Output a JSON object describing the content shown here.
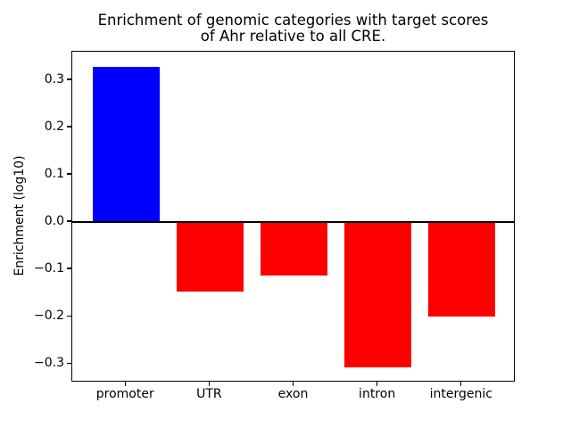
{
  "figure": {
    "title": "Enrichment of genomic categories with target scores\nof Ahr relative to all CRE.",
    "ylabel": "Enrichment (log10)"
  },
  "chart_data": {
    "type": "bar",
    "title": "Enrichment of genomic categories with target scores of Ahr relative to all CRE.",
    "xlabel": "",
    "ylabel": "Enrichment (log10)",
    "categories": [
      "promoter",
      "UTR",
      "exon",
      "intron",
      "intergenic"
    ],
    "values": [
      0.328,
      -0.146,
      -0.112,
      -0.307,
      -0.199
    ],
    "bar_colors": [
      "#0000ff",
      "#ff0000",
      "#ff0000",
      "#ff0000",
      "#ff0000"
    ],
    "positive_color": "#0000ff",
    "negative_color": "#ff0000",
    "ylim": [
      -0.339,
      0.36
    ],
    "xlim": [
      -0.64,
      4.64
    ],
    "bar_width": 0.8,
    "ytick_values": [
      0.3,
      0.2,
      0.1,
      0.0,
      -0.1,
      -0.2,
      -0.3
    ],
    "ytick_labels": [
      "0.3",
      "0.2",
      "0.1",
      "0.0",
      "−0.1",
      "−0.2",
      "−0.3"
    ],
    "zero_line": true,
    "zero_line_color": "#000000",
    "grid": false,
    "legend": null,
    "background_color": "#ffffff",
    "frame_color": "#000000"
  }
}
